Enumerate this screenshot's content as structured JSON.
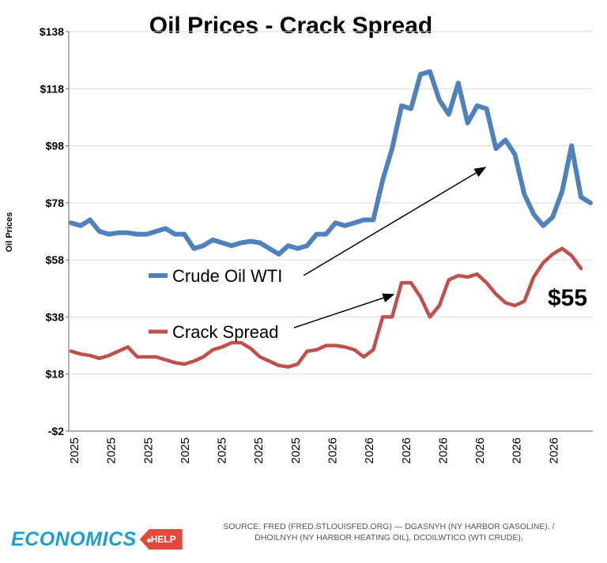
{
  "chart_data": {
    "type": "line",
    "title": "Oil Prices - Crack Spread",
    "ylabel": "Oil Prices",
    "xlabel": "",
    "ylim": [
      -2,
      138
    ],
    "yticks": [
      -2,
      18,
      38,
      58,
      78,
      98,
      118,
      138
    ],
    "ytick_labels": [
      "-$2",
      "$18",
      "$38",
      "$58",
      "$78",
      "$98",
      "$118",
      "$138"
    ],
    "xtick_labels": [
      "2025",
      "2025",
      "2025",
      "2025",
      "2025",
      "2025",
      "2025",
      "2026",
      "2026",
      "2026",
      "2026",
      "2026",
      "2026",
      "2026"
    ],
    "grid": true,
    "legend": "inside-left",
    "series": [
      {
        "name": "Crude Oil WTI",
        "color": "#4f81bd",
        "values": [
          71,
          70,
          72,
          68,
          67,
          67.5,
          67.5,
          67,
          67,
          68,
          69,
          67,
          67,
          62,
          63,
          65,
          64,
          63,
          64,
          64.5,
          64,
          62,
          60,
          63,
          62,
          63,
          67,
          67,
          71,
          70,
          71,
          72,
          72,
          86,
          97,
          112,
          111,
          123,
          124,
          114,
          109,
          120,
          106,
          112,
          111,
          97,
          100,
          95,
          81,
          74,
          70,
          73,
          82,
          98,
          80,
          78
        ]
      },
      {
        "name": "Crack Spread",
        "color": "#c0504d",
        "values": [
          26,
          25,
          24.5,
          23.5,
          24.5,
          26,
          27.5,
          24,
          24,
          24,
          23,
          22,
          21.5,
          22.5,
          24,
          26.5,
          27.5,
          29,
          29,
          27,
          24,
          22.5,
          21,
          20.5,
          21.5,
          26,
          26.5,
          28,
          28,
          27.5,
          26.5,
          24,
          26.5,
          38,
          38,
          50,
          50,
          45,
          38,
          42,
          51,
          52.5,
          52,
          53,
          50,
          46,
          43,
          42,
          43.5,
          52,
          57,
          60,
          62,
          59.5,
          55
        ]
      }
    ],
    "annotations": [
      {
        "text": "$55"
      }
    ]
  },
  "footer": {
    "source_line1": "SOURCE: FRED (FRED.STLOUISFED.ORG) — DGASNYH (NY HARBOR GASOLINE), /",
    "source_line2": "DHOILNYH (NY HARBOR HEATING OIL), DCOILWTICO (WTI CRUDE),",
    "logo_word": "ECONOMICS",
    "logo_tag": "HELP",
    "logo_word_color": "#1d9fd6",
    "logo_tag_color": "#e0493b"
  }
}
